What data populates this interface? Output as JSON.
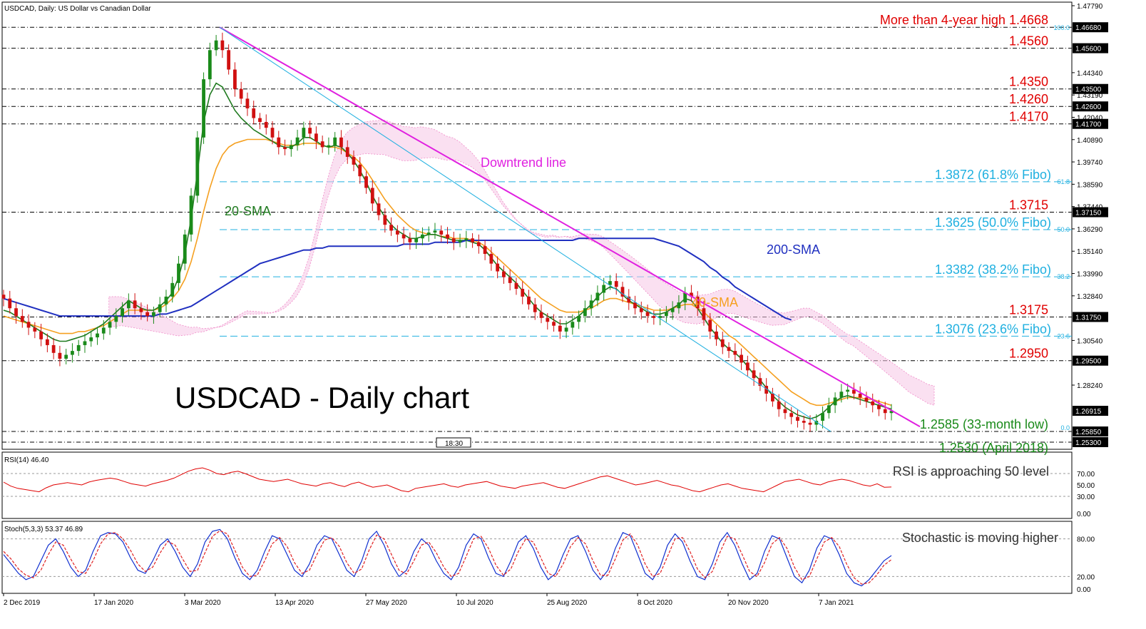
{
  "header": {
    "title": "USDCAD, Daily:  US Dollar vs Canadian Dollar"
  },
  "chart_data": [
    {
      "type": "candlestick",
      "panel": "price",
      "title": "USDCAD - Daily chart",
      "ylim": [
        1.253,
        1.4779
      ],
      "ytick_labels": [
        "1.47790",
        "1.44340",
        "1.43190",
        "1.42040",
        "1.40890",
        "1.39740",
        "1.38590",
        "1.37440",
        "1.36290",
        "1.35140",
        "1.33990",
        "1.32840",
        "1.30540",
        "1.28240"
      ],
      "xtick_labels": [
        "2 Dec 2019",
        "17 Jan 2020",
        "3 Mar 2020",
        "13 Apr 2020",
        "27 May 2020",
        "10 Jul 2020",
        "25 Aug 2020",
        "8 Oct 2020",
        "20 Nov 2020",
        "7 Jan 2021"
      ],
      "horizontal_levels": [
        {
          "value": 1.4668,
          "axis_label": "1.46680",
          "text": "More than 4-year high 1.4668",
          "color": "#e00000"
        },
        {
          "value": 1.456,
          "axis_label": "1.45600",
          "text": "1.4560",
          "color": "#e00000"
        },
        {
          "value": 1.435,
          "axis_label": "1.43500",
          "text": "1.4350",
          "color": "#e00000"
        },
        {
          "value": 1.426,
          "axis_label": "1.42600",
          "text": "1.4260",
          "color": "#e00000"
        },
        {
          "value": 1.417,
          "axis_label": "1.41700",
          "text": "1.4170",
          "color": "#e00000"
        },
        {
          "value": 1.3715,
          "axis_label": "1.37150",
          "text": "1.3715",
          "color": "#e00000"
        },
        {
          "value": 1.3175,
          "axis_label": "1.31750",
          "text": "1.3175",
          "color": "#e00000"
        },
        {
          "value": 1.295,
          "axis_label": "1.29500",
          "text": "1.2950",
          "color": "#e00000"
        },
        {
          "value": 1.2585,
          "axis_label": "1.25850",
          "text": "1.2585 (33-month low)",
          "color": "#1a8a1a"
        },
        {
          "value": 1.253,
          "axis_label": "1.25300",
          "text": "1.2530 (April 2018)",
          "color": "#1a8a1a"
        }
      ],
      "fibo_levels": [
        {
          "value": 1.3872,
          "text": "1.3872 (61.8% Fibo)",
          "tag": "61.8"
        },
        {
          "value": 1.3625,
          "text": "1.3625 (50.0% Fibo)",
          "tag": "50.0"
        },
        {
          "value": 1.3382,
          "text": "1.3382 (38.2% Fibo)",
          "tag": "38.2"
        },
        {
          "value": 1.3076,
          "text": "1.3076 (23.6% Fibo)",
          "tag": "23.6"
        }
      ],
      "fibo_top_tag": "100.0",
      "fibo_bottom_tag": "0.0",
      "current_price": {
        "value": 1.26915,
        "label": "1.26915"
      },
      "time_tag": "18:30",
      "annotations": {
        "downtrend": "Downtrend line",
        "sma20": "20-SMA",
        "sma40": "40-SMA",
        "sma200": "200-SMA"
      },
      "colors": {
        "downtrend": "#e020e0",
        "sma20": "#1f7a1f",
        "sma40": "#f5a020",
        "sma200": "#2030c0",
        "fibo": "#20b0e0",
        "level_red": "#e00000",
        "up": "#1a8a1a",
        "down": "#d01010"
      },
      "close_series": [
        1.327,
        1.322,
        1.318,
        1.315,
        1.312,
        1.31,
        1.306,
        1.303,
        1.299,
        1.296,
        1.298,
        1.3,
        1.303,
        1.305,
        1.307,
        1.309,
        1.312,
        1.315,
        1.318,
        1.322,
        1.326,
        1.322,
        1.32,
        1.318,
        1.32,
        1.324,
        1.328,
        1.335,
        1.345,
        1.36,
        1.38,
        1.41,
        1.44,
        1.455,
        1.46,
        1.455,
        1.445,
        1.435,
        1.43,
        1.425,
        1.42,
        1.418,
        1.415,
        1.41,
        1.405,
        1.404,
        1.406,
        1.41,
        1.415,
        1.412,
        1.408,
        1.405,
        1.406,
        1.41,
        1.405,
        1.4,
        1.396,
        1.39,
        1.384,
        1.376,
        1.37,
        1.365,
        1.362,
        1.36,
        1.358,
        1.356,
        1.358,
        1.36,
        1.361,
        1.362,
        1.36,
        1.358,
        1.356,
        1.357,
        1.358,
        1.356,
        1.354,
        1.35,
        1.345,
        1.341,
        1.338,
        1.335,
        1.332,
        1.328,
        1.324,
        1.32,
        1.317,
        1.315,
        1.313,
        1.31,
        1.312,
        1.315,
        1.318,
        1.322,
        1.326,
        1.33,
        1.334,
        1.336,
        1.333,
        1.328,
        1.325,
        1.322,
        1.32,
        1.318,
        1.317,
        1.318,
        1.32,
        1.322,
        1.325,
        1.33,
        1.328,
        1.322,
        1.316,
        1.31,
        1.306,
        1.302,
        1.3,
        1.298,
        1.294,
        1.29,
        1.286,
        1.282,
        1.278,
        1.274,
        1.27,
        1.268,
        1.266,
        1.264,
        1.263,
        1.262,
        1.264,
        1.268,
        1.272,
        1.276,
        1.279,
        1.28,
        1.278,
        1.276,
        1.274,
        1.272,
        1.27,
        1.268,
        1.2691
      ],
      "sma20_series": [
        1.321,
        1.32,
        1.318,
        1.316,
        1.314,
        1.312,
        1.31,
        1.308,
        1.306,
        1.305,
        1.305,
        1.306,
        1.307,
        1.308,
        1.31,
        1.312,
        1.314,
        1.317,
        1.32,
        1.323,
        1.326,
        1.324,
        1.322,
        1.321,
        1.321,
        1.323,
        1.326,
        1.33,
        1.338,
        1.35,
        1.368,
        1.392,
        1.418,
        1.432,
        1.438,
        1.436,
        1.43,
        1.424,
        1.42,
        1.417,
        1.414,
        1.412,
        1.41,
        1.408,
        1.406,
        1.405,
        1.405,
        1.407,
        1.41,
        1.41,
        1.408,
        1.406,
        1.405,
        1.406,
        1.405,
        1.402,
        1.398,
        1.393,
        1.387,
        1.38,
        1.374,
        1.369,
        1.365,
        1.362,
        1.36,
        1.358,
        1.358,
        1.359,
        1.36,
        1.36,
        1.359,
        1.358,
        1.357,
        1.357,
        1.357,
        1.356,
        1.355,
        1.352,
        1.348,
        1.344,
        1.341,
        1.338,
        1.335,
        1.331,
        1.327,
        1.323,
        1.32,
        1.318,
        1.316,
        1.314,
        1.314,
        1.316,
        1.318,
        1.321,
        1.324,
        1.328,
        1.331,
        1.333,
        1.332,
        1.329,
        1.326,
        1.324,
        1.322,
        1.32,
        1.319,
        1.319,
        1.32,
        1.322,
        1.324,
        1.327,
        1.326,
        1.322,
        1.317,
        1.312,
        1.308,
        1.304,
        1.301,
        1.299,
        1.296,
        1.292,
        1.288,
        1.285,
        1.281,
        1.277,
        1.274,
        1.271,
        1.269,
        1.267,
        1.266,
        1.265,
        1.266,
        1.268,
        1.271,
        1.274,
        1.276,
        1.277,
        1.276,
        1.275,
        1.274,
        1.273,
        1.272,
        1.271,
        1.27
      ],
      "sma40_series": [
        1.318,
        1.317,
        1.316,
        1.315,
        1.314,
        1.313,
        1.312,
        1.311,
        1.31,
        1.309,
        1.309,
        1.309,
        1.31,
        1.31,
        1.311,
        1.312,
        1.313,
        1.315,
        1.317,
        1.319,
        1.321,
        1.321,
        1.321,
        1.321,
        1.321,
        1.322,
        1.324,
        1.327,
        1.331,
        1.337,
        1.346,
        1.358,
        1.372,
        1.384,
        1.394,
        1.401,
        1.405,
        1.407,
        1.408,
        1.409,
        1.409,
        1.409,
        1.409,
        1.408,
        1.407,
        1.406,
        1.406,
        1.406,
        1.407,
        1.407,
        1.407,
        1.406,
        1.405,
        1.405,
        1.404,
        1.402,
        1.4,
        1.397,
        1.393,
        1.388,
        1.383,
        1.378,
        1.374,
        1.37,
        1.367,
        1.364,
        1.362,
        1.361,
        1.36,
        1.36,
        1.359,
        1.359,
        1.358,
        1.358,
        1.358,
        1.357,
        1.356,
        1.354,
        1.351,
        1.348,
        1.345,
        1.342,
        1.339,
        1.336,
        1.333,
        1.33,
        1.327,
        1.325,
        1.323,
        1.321,
        1.32,
        1.32,
        1.32,
        1.321,
        1.322,
        1.324,
        1.326,
        1.327,
        1.327,
        1.326,
        1.325,
        1.324,
        1.323,
        1.322,
        1.321,
        1.321,
        1.321,
        1.322,
        1.323,
        1.324,
        1.324,
        1.322,
        1.32,
        1.317,
        1.314,
        1.311,
        1.308,
        1.306,
        1.303,
        1.3,
        1.297,
        1.294,
        1.291,
        1.288,
        1.285,
        1.282,
        1.279,
        1.277,
        1.275,
        1.273,
        1.272,
        1.272,
        1.273,
        1.274,
        1.275,
        1.276,
        1.276,
        1.276,
        1.275,
        1.275,
        1.274,
        1.273,
        1.272
      ],
      "sma200_series": [
        1.327,
        1.326,
        1.325,
        1.324,
        1.323,
        1.322,
        1.321,
        1.32,
        1.319,
        1.318,
        1.318,
        1.318,
        1.318,
        1.318,
        1.318,
        1.318,
        1.318,
        1.318,
        1.318,
        1.318,
        1.318,
        1.318,
        1.318,
        1.318,
        1.318,
        1.319,
        1.319,
        1.32,
        1.321,
        1.322,
        1.323,
        1.325,
        1.327,
        1.329,
        1.331,
        1.333,
        1.335,
        1.337,
        1.339,
        1.341,
        1.343,
        1.345,
        1.346,
        1.347,
        1.348,
        1.349,
        1.35,
        1.351,
        1.352,
        1.352,
        1.353,
        1.353,
        1.354,
        1.354,
        1.354,
        1.354,
        1.354,
        1.354,
        1.354,
        1.354,
        1.354,
        1.354,
        1.354,
        1.354,
        1.355,
        1.355,
        1.355,
        1.355,
        1.355,
        1.356,
        1.356,
        1.356,
        1.356,
        1.356,
        1.357,
        1.357,
        1.357,
        1.357,
        1.357,
        1.357,
        1.357,
        1.357,
        1.357,
        1.357,
        1.357,
        1.357,
        1.357,
        1.357,
        1.357,
        1.357,
        1.357,
        1.357,
        1.358,
        1.358,
        1.358,
        1.358,
        1.358,
        1.358,
        1.358,
        1.358,
        1.358,
        1.358,
        1.358,
        1.358,
        1.358,
        1.357,
        1.356,
        1.355,
        1.354,
        1.352,
        1.35,
        1.348,
        1.346,
        1.343,
        1.341,
        1.338,
        1.336,
        1.333,
        1.331,
        1.329,
        1.327,
        1.325,
        1.323,
        1.321,
        1.319,
        1.317,
        1.316
      ]
    },
    {
      "type": "line",
      "panel": "rsi",
      "title": "RSI(14) 46.40",
      "annotation": "RSI is approaching 50 level",
      "ylim": [
        0,
        100
      ],
      "ytick_labels": [
        "70.00",
        "50.00",
        "30.00",
        "0.00"
      ],
      "levels": [
        30,
        70
      ],
      "color": "#e00000",
      "values": [
        55,
        48,
        44,
        42,
        40,
        38,
        45,
        50,
        52,
        54,
        52,
        50,
        55,
        58,
        60,
        62,
        60,
        56,
        52,
        50,
        48,
        52,
        55,
        58,
        62,
        68,
        74,
        78,
        80,
        76,
        70,
        68,
        72,
        74,
        70,
        65,
        60,
        58,
        56,
        58,
        60,
        56,
        52,
        50,
        48,
        52,
        54,
        50,
        47,
        52,
        55,
        50,
        46,
        48,
        50,
        45,
        40,
        38,
        44,
        46,
        48,
        50,
        52,
        48,
        46,
        50,
        52,
        54,
        56,
        52,
        48,
        46,
        44,
        48,
        50,
        52,
        54,
        50,
        46,
        44,
        48,
        52,
        56,
        60,
        64,
        66,
        62,
        58,
        54,
        50,
        52,
        55,
        58,
        54,
        50,
        48,
        44,
        40,
        38,
        42,
        46,
        50,
        52,
        48,
        44,
        42,
        40,
        38,
        44,
        50,
        56,
        58,
        60,
        56,
        52,
        50,
        55,
        58,
        60,
        58,
        54,
        50,
        48,
        52,
        46,
        46.4
      ]
    },
    {
      "type": "line",
      "panel": "stochastic",
      "title": "Stoch(5,3,3) 53.37 46.89",
      "annotation": "Stochastic is moving higher",
      "ylim": [
        0,
        100
      ],
      "ytick_labels": [
        "80.00",
        "20.00",
        "0.00"
      ],
      "levels": [
        20,
        80
      ],
      "series": [
        {
          "color": "#1030d0",
          "values": [
            55,
            40,
            25,
            15,
            20,
            45,
            70,
            80,
            60,
            35,
            20,
            30,
            60,
            85,
            90,
            88,
            75,
            50,
            30,
            25,
            45,
            70,
            80,
            60,
            35,
            20,
            40,
            75,
            92,
            95,
            80,
            50,
            25,
            15,
            30,
            60,
            85,
            80,
            55,
            30,
            20,
            40,
            70,
            85,
            80,
            55,
            30,
            20,
            45,
            80,
            92,
            70,
            40,
            20,
            30,
            60,
            80,
            70,
            45,
            25,
            15,
            35,
            70,
            88,
            80,
            50,
            25,
            20,
            45,
            75,
            85,
            65,
            35,
            15,
            25,
            55,
            80,
            85,
            60,
            30,
            15,
            30,
            65,
            90,
            85,
            55,
            25,
            15,
            35,
            70,
            88,
            75,
            45,
            20,
            15,
            40,
            75,
            90,
            70,
            40,
            15,
            25,
            60,
            85,
            80,
            50,
            20,
            10,
            30,
            65,
            85,
            80,
            55,
            25,
            10,
            5,
            15,
            30,
            45,
            53.37
          ]
        },
        {
          "color": "#e02020",
          "values": [
            60,
            48,
            32,
            22,
            18,
            30,
            55,
            75,
            70,
            48,
            28,
            25,
            45,
            72,
            88,
            90,
            80,
            62,
            40,
            28,
            35,
            58,
            76,
            70,
            48,
            28,
            30,
            58,
            84,
            93,
            88,
            62,
            35,
            20,
            22,
            45,
            72,
            82,
            68,
            42,
            25,
            30,
            55,
            78,
            82,
            68,
            42,
            25,
            32,
            62,
            86,
            80,
            55,
            30,
            24,
            45,
            70,
            75,
            58,
            35,
            20,
            25,
            52,
            80,
            84,
            65,
            38,
            22,
            32,
            60,
            80,
            75,
            50,
            25,
            20,
            40,
            68,
            82,
            72,
            45,
            22,
            22,
            48,
            78,
            88,
            70,
            40,
            20,
            25,
            52,
            80,
            82,
            60,
            32,
            18,
            28,
            58,
            84,
            80,
            55,
            28,
            20,
            42,
            72,
            82,
            65,
            35,
            15,
            20,
            48,
            75,
            82,
            68,
            40,
            18,
            8,
            10,
            22,
            38,
            46.89
          ]
        }
      ]
    }
  ]
}
